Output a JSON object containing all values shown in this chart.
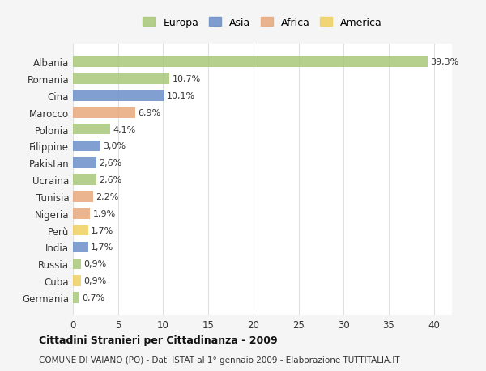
{
  "countries": [
    "Albania",
    "Romania",
    "Cina",
    "Marocco",
    "Polonia",
    "Filippine",
    "Pakistan",
    "Ucraina",
    "Tunisia",
    "Nigeria",
    "Perù",
    "India",
    "Russia",
    "Cuba",
    "Germania"
  ],
  "values": [
    39.3,
    10.7,
    10.1,
    6.9,
    4.1,
    3.0,
    2.6,
    2.6,
    2.2,
    1.9,
    1.7,
    1.7,
    0.9,
    0.9,
    0.7
  ],
  "labels": [
    "39,3%",
    "10,7%",
    "10,1%",
    "6,9%",
    "4,1%",
    "3,0%",
    "2,6%",
    "2,6%",
    "2,2%",
    "1,9%",
    "1,7%",
    "1,7%",
    "0,9%",
    "0,9%",
    "0,7%"
  ],
  "continents": [
    "Europa",
    "Europa",
    "Asia",
    "Africa",
    "Europa",
    "Asia",
    "Asia",
    "Europa",
    "Africa",
    "Africa",
    "America",
    "Asia",
    "Europa",
    "America",
    "Europa"
  ],
  "continent_colors": {
    "Europa": "#a8c878",
    "Asia": "#6b8fc9",
    "Africa": "#e8a87c",
    "America": "#f0d060"
  },
  "legend_order": [
    "Europa",
    "Asia",
    "Africa",
    "America"
  ],
  "title": "Cittadini Stranieri per Cittadinanza - 2009",
  "subtitle": "COMUNE DI VAIANO (PO) - Dati ISTAT al 1° gennaio 2009 - Elaborazione TUTTITALIA.IT",
  "xlim": [
    0,
    42
  ],
  "xticks": [
    0,
    5,
    10,
    15,
    20,
    25,
    30,
    35,
    40
  ],
  "background_color": "#f5f5f5",
  "plot_background": "#ffffff",
  "grid_color": "#e0e0e0"
}
